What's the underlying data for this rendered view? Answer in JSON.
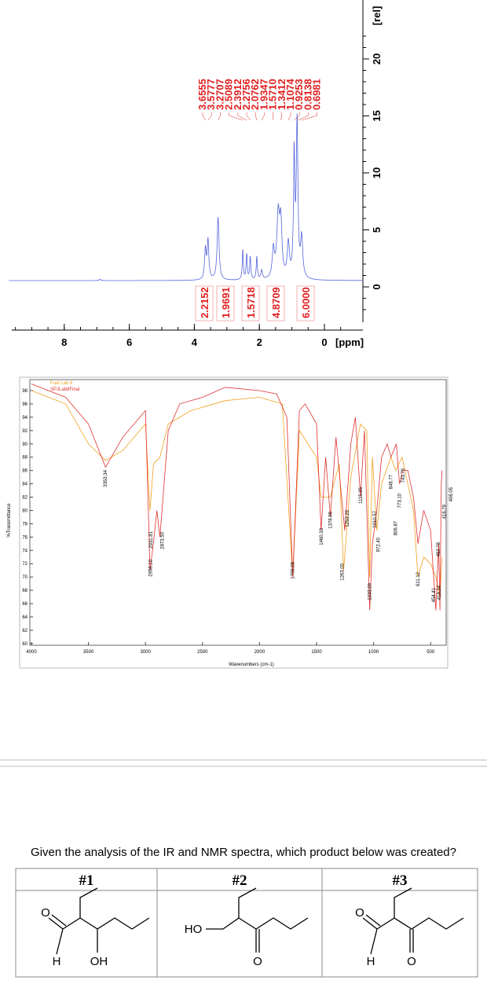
{
  "nmr": {
    "peak_labels": [
      "3.6555",
      "3.5777",
      "3.2707",
      "2.5089",
      "2.3912",
      "2.2756",
      "2.0762",
      "1.9347",
      "1.5710",
      "1.3412",
      "1.1074",
      "0.9253",
      "0.8138",
      "0.6981"
    ],
    "integrals": [
      "2.2152",
      "1.9691",
      "1.5718",
      "4.8709",
      "6.0000"
    ],
    "y_axis_label": "[rel]",
    "y_ticks": [
      0,
      5,
      10,
      15,
      20
    ],
    "x_ticks": [
      8,
      6,
      4,
      2,
      0
    ],
    "x_unit": "[ppm]"
  },
  "ir": {
    "legend": [
      "Fuel Lab 8",
      "SPJLab8Final"
    ],
    "y_axis_label": "%Transmittance",
    "x_axis_label": "Wavenumbers (cm-1)",
    "y_ticks": [
      98,
      96,
      94,
      92,
      90,
      88,
      86,
      84,
      82,
      80,
      78,
      76,
      74,
      72,
      70,
      68,
      66,
      64,
      62,
      60
    ],
    "x_ticks": [
      4000,
      3500,
      3000,
      2500,
      2000,
      1500,
      1000,
      500
    ],
    "peak_labels": [
      "3353.34",
      "2958.10",
      "2931.81",
      "2873.50",
      "1709.09",
      "1460.33",
      "1378.96",
      "1253.29",
      "1263.00",
      "1115.25",
      "1010.57",
      "972.40",
      "1033.69",
      "848.77",
      "743.79",
      "773.10",
      "806.87",
      "611.12",
      "454.41",
      "452.78",
      "418.24",
      "416.79",
      "406.05"
    ]
  },
  "question": "Given the analysis of the IR and NMR spectra, which product below was created?",
  "table": {
    "headers": [
      "#1",
      "#2",
      "#3"
    ],
    "structure_labels": [
      [
        "O",
        "H",
        "OH"
      ],
      [
        "HO",
        "O"
      ],
      [
        "O",
        "H",
        "O"
      ]
    ]
  }
}
